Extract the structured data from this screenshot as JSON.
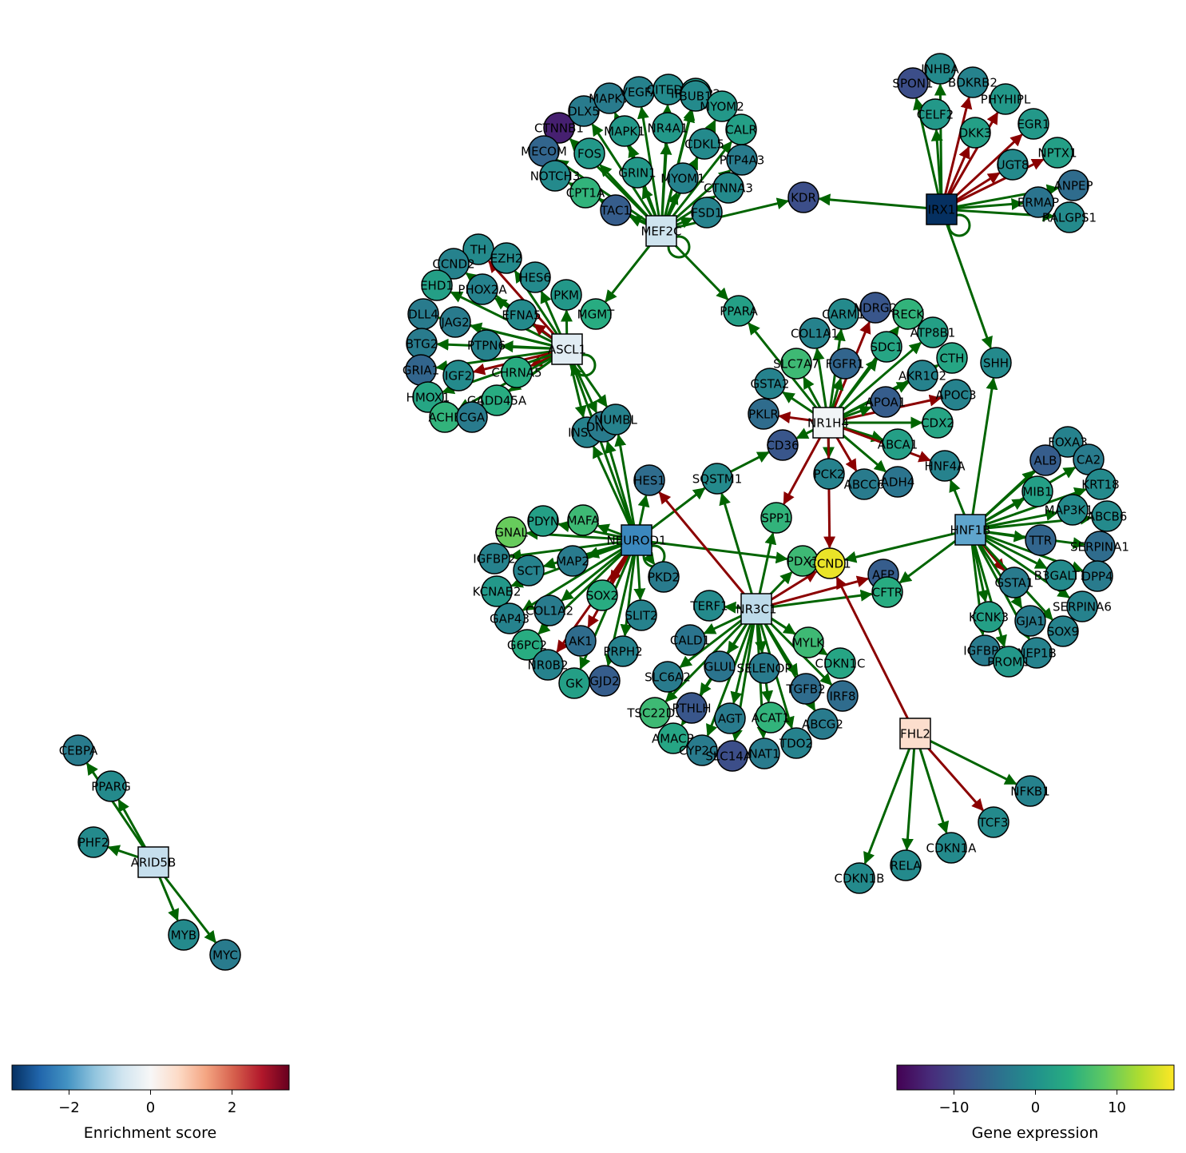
{
  "colors": {
    "activation": "#006400",
    "repression": "#8b0000"
  },
  "regulators": [
    {
      "id": "MEF2C",
      "score": -0.7
    },
    {
      "id": "IRX1",
      "score": -3.4
    },
    {
      "id": "ASCL1",
      "score": -0.4
    },
    {
      "id": "NR1H4",
      "score": -0.1
    },
    {
      "id": "NEUROD1",
      "score": -2.2
    },
    {
      "id": "HNF1B",
      "score": -1.8
    },
    {
      "id": "NR3C1",
      "score": -0.9
    },
    {
      "id": "FHL2",
      "score": 0.6
    },
    {
      "id": "ARID5B",
      "score": -0.8
    }
  ],
  "genes": [
    {
      "id": "CTNNB1",
      "expr": -14
    },
    {
      "id": "MECOM",
      "expr": -6
    },
    {
      "id": "NOTCH3",
      "expr": -1
    },
    {
      "id": "DLX5",
      "expr": -3
    },
    {
      "id": "MAPK7",
      "expr": -3
    },
    {
      "id": "VEGFA",
      "expr": -2
    },
    {
      "id": "CITED2",
      "expr": -1
    },
    {
      "id": "IRF2BP2",
      "expr": 1
    },
    {
      "id": "BUB1",
      "expr": -1
    },
    {
      "id": "MYOM2",
      "expr": 1
    },
    {
      "id": "FOS",
      "expr": 1
    },
    {
      "id": "MAPK1",
      "expr": 1
    },
    {
      "id": "NR4A1",
      "expr": 1
    },
    {
      "id": "CDKL5",
      "expr": -1
    },
    {
      "id": "CALR",
      "expr": 2
    },
    {
      "id": "PTP4A3",
      "expr": -3
    },
    {
      "id": "GRIN1",
      "expr": 1
    },
    {
      "id": "MYOM1",
      "expr": -2
    },
    {
      "id": "CTNNA3",
      "expr": -1
    },
    {
      "id": "CPT1A",
      "expr": 5
    },
    {
      "id": "TAC1",
      "expr": -7
    },
    {
      "id": "FSD1",
      "expr": -2
    },
    {
      "id": "KDR",
      "expr": -9
    },
    {
      "id": "INHBA",
      "expr": -1
    },
    {
      "id": "SPON1",
      "expr": -9
    },
    {
      "id": "BDKRB2",
      "expr": -2
    },
    {
      "id": "PHYHIPL",
      "expr": 1
    },
    {
      "id": "CELF2",
      "expr": 1
    },
    {
      "id": "DKK3",
      "expr": 2
    },
    {
      "id": "EGR1",
      "expr": 1
    },
    {
      "id": "UGT8",
      "expr": -1
    },
    {
      "id": "NPTX1",
      "expr": 2
    },
    {
      "id": "ANPEP",
      "expr": -5
    },
    {
      "id": "ERMAP",
      "expr": -4
    },
    {
      "id": "RALGPS1",
      "expr": -1
    },
    {
      "id": "TH",
      "expr": -1
    },
    {
      "id": "CCND2",
      "expr": -2
    },
    {
      "id": "EZH2",
      "expr": -1
    },
    {
      "id": "HES6",
      "expr": -1
    },
    {
      "id": "EHD1",
      "expr": 2
    },
    {
      "id": "PHOX2A",
      "expr": -2
    },
    {
      "id": "PKM",
      "expr": 1
    },
    {
      "id": "DLL4",
      "expr": -3
    },
    {
      "id": "EFNA5",
      "expr": -1
    },
    {
      "id": "JAG2",
      "expr": -3
    },
    {
      "id": "MGMT",
      "expr": 4
    },
    {
      "id": "BTG2",
      "expr": -3
    },
    {
      "id": "PTPN6",
      "expr": -2
    },
    {
      "id": "GRIA1",
      "expr": -6
    },
    {
      "id": "IGF2",
      "expr": -1
    },
    {
      "id": "CHRNA5",
      "expr": 4
    },
    {
      "id": "HMOX1",
      "expr": 3
    },
    {
      "id": "GADD45A",
      "expr": 4
    },
    {
      "id": "ACHE",
      "expr": 5
    },
    {
      "id": "CGA",
      "expr": -3
    },
    {
      "id": "INSM1",
      "expr": -2
    },
    {
      "id": "DNER",
      "expr": -3
    },
    {
      "id": "NUMBL",
      "expr": -2
    },
    {
      "id": "HES1",
      "expr": -5
    },
    {
      "id": "SQSTM1",
      "expr": -1
    },
    {
      "id": "PPARA",
      "expr": 2
    },
    {
      "id": "CARM1",
      "expr": -1
    },
    {
      "id": "NDRG2",
      "expr": -8
    },
    {
      "id": "RECK",
      "expr": 5
    },
    {
      "id": "COL1A1",
      "expr": -2
    },
    {
      "id": "ATP8B1",
      "expr": 2
    },
    {
      "id": "SDC1",
      "expr": 3
    },
    {
      "id": "CTH",
      "expr": 3
    },
    {
      "id": "SLC7A7",
      "expr": 6
    },
    {
      "id": "FGFR1",
      "expr": -6
    },
    {
      "id": "GSTA2",
      "expr": -2
    },
    {
      "id": "AKR1C2",
      "expr": -2
    },
    {
      "id": "APOC3",
      "expr": -2
    },
    {
      "id": "APOA1",
      "expr": -7
    },
    {
      "id": "PKLR",
      "expr": -5
    },
    {
      "id": "CDX2",
      "expr": 3
    },
    {
      "id": "CD36",
      "expr": -8
    },
    {
      "id": "ABCA1",
      "expr": 2
    },
    {
      "id": "HNF4A",
      "expr": -2
    },
    {
      "id": "PCK2",
      "expr": -2
    },
    {
      "id": "ABCC6",
      "expr": -3
    },
    {
      "id": "ADH4",
      "expr": -4
    },
    {
      "id": "SPP1",
      "expr": 5
    },
    {
      "id": "SHH",
      "expr": -1
    },
    {
      "id": "FOXA3",
      "expr": -2
    },
    {
      "id": "ALB",
      "expr": -7
    },
    {
      "id": "CA2",
      "expr": -3
    },
    {
      "id": "MIB1",
      "expr": 2
    },
    {
      "id": "KRT18",
      "expr": -1
    },
    {
      "id": "MAP3K14",
      "expr": -1
    },
    {
      "id": "ABCB6",
      "expr": -1
    },
    {
      "id": "TTR",
      "expr": -6
    },
    {
      "id": "SERPINA1",
      "expr": -5
    },
    {
      "id": "B3GALT1",
      "expr": -1
    },
    {
      "id": "DPP4",
      "expr": -3
    },
    {
      "id": "GSTA1",
      "expr": -3
    },
    {
      "id": "SERPINA6",
      "expr": -2
    },
    {
      "id": "KCNK3",
      "expr": 2
    },
    {
      "id": "GJA1",
      "expr": -3
    },
    {
      "id": "SOX9",
      "expr": -2
    },
    {
      "id": "IGFBP1",
      "expr": -3
    },
    {
      "id": "NEP1B",
      "expr": -2
    },
    {
      "id": "PROM1",
      "expr": 1
    },
    {
      "id": "GNAL",
      "expr": 9
    },
    {
      "id": "PDYN",
      "expr": 2
    },
    {
      "id": "MAFA",
      "expr": 6
    },
    {
      "id": "IGFBP2",
      "expr": -2
    },
    {
      "id": "SCT",
      "expr": -2
    },
    {
      "id": "MAP2",
      "expr": -3
    },
    {
      "id": "KCNAB2",
      "expr": 1
    },
    {
      "id": "COL1A2",
      "expr": -3
    },
    {
      "id": "SOX2",
      "expr": 4
    },
    {
      "id": "PKD2",
      "expr": -3
    },
    {
      "id": "GAP43",
      "expr": -2
    },
    {
      "id": "SLIT2",
      "expr": -2
    },
    {
      "id": "G6PC2",
      "expr": 4
    },
    {
      "id": "AK1",
      "expr": -5
    },
    {
      "id": "PRPH2",
      "expr": -2
    },
    {
      "id": "NR0B2",
      "expr": -2
    },
    {
      "id": "GK",
      "expr": 2
    },
    {
      "id": "GJD2",
      "expr": -7
    },
    {
      "id": "PDX1",
      "expr": 6
    },
    {
      "id": "CCND1",
      "expr": 16
    },
    {
      "id": "AFP",
      "expr": -7
    },
    {
      "id": "CFTR",
      "expr": 4
    },
    {
      "id": "TERF1",
      "expr": -1
    },
    {
      "id": "CALD1",
      "expr": -4
    },
    {
      "id": "MYLK",
      "expr": 6
    },
    {
      "id": "CDKN1C",
      "expr": 3
    },
    {
      "id": "SLC6A2",
      "expr": -3
    },
    {
      "id": "GLUL",
      "expr": -4
    },
    {
      "id": "SELENOP",
      "expr": -3
    },
    {
      "id": "TGFB2",
      "expr": -5
    },
    {
      "id": "IRF8",
      "expr": -5
    },
    {
      "id": "TSC22D3",
      "expr": 6
    },
    {
      "id": "PTHLH",
      "expr": -8
    },
    {
      "id": "AGT",
      "expr": -3
    },
    {
      "id": "ACAT1",
      "expr": 5
    },
    {
      "id": "ABCG2",
      "expr": -3
    },
    {
      "id": "AMACR",
      "expr": 3
    },
    {
      "id": "CYP2C9",
      "expr": -3
    },
    {
      "id": "SLC14A2",
      "expr": -9
    },
    {
      "id": "NAT1",
      "expr": -3
    },
    {
      "id": "TDO2",
      "expr": -2
    },
    {
      "id": "NFKB1",
      "expr": -2
    },
    {
      "id": "TCF3",
      "expr": -1
    },
    {
      "id": "CDKN1A",
      "expr": -1
    },
    {
      "id": "RELA",
      "expr": -1
    },
    {
      "id": "CDKN1B",
      "expr": -1
    },
    {
      "id": "CEBPA",
      "expr": -3
    },
    {
      "id": "PPARG",
      "expr": -1
    },
    {
      "id": "PHF2",
      "expr": -1
    },
    {
      "id": "MYB",
      "expr": -1
    },
    {
      "id": "MYC",
      "expr": -3
    }
  ],
  "edges": [
    [
      "MEF2C",
      "CTNNB1",
      "act"
    ],
    [
      "MEF2C",
      "MECOM",
      "act"
    ],
    [
      "MEF2C",
      "NOTCH3",
      "act"
    ],
    [
      "MEF2C",
      "DLX5",
      "act"
    ],
    [
      "MEF2C",
      "MAPK7",
      "act"
    ],
    [
      "MEF2C",
      "VEGFA",
      "act"
    ],
    [
      "MEF2C",
      "CITED2",
      "act"
    ],
    [
      "MEF2C",
      "IRF2BP2",
      "act"
    ],
    [
      "MEF2C",
      "BUB1",
      "act"
    ],
    [
      "MEF2C",
      "MYOM2",
      "act"
    ],
    [
      "MEF2C",
      "FOS",
      "act"
    ],
    [
      "MEF2C",
      "MAPK1",
      "act"
    ],
    [
      "MEF2C",
      "NR4A1",
      "act"
    ],
    [
      "MEF2C",
      "CDKL5",
      "act"
    ],
    [
      "MEF2C",
      "CALR",
      "act"
    ],
    [
      "MEF2C",
      "PTP4A3",
      "act"
    ],
    [
      "MEF2C",
      "GRIN1",
      "act"
    ],
    [
      "MEF2C",
      "MYOM1",
      "act"
    ],
    [
      "MEF2C",
      "CTNNA3",
      "act"
    ],
    [
      "MEF2C",
      "CPT1A",
      "act"
    ],
    [
      "MEF2C",
      "TAC1",
      "act"
    ],
    [
      "MEF2C",
      "FSD1",
      "act"
    ],
    [
      "MEF2C",
      "KDR",
      "act"
    ],
    [
      "MEF2C",
      "MGMT",
      "act"
    ],
    [
      "MEF2C",
      "PPARA",
      "act"
    ],
    [
      "IRX1",
      "KDR",
      "act"
    ],
    [
      "IRX1",
      "INHBA",
      "act"
    ],
    [
      "IRX1",
      "SPON1",
      "act"
    ],
    [
      "IRX1",
      "BDKRB2",
      "rep"
    ],
    [
      "IRX1",
      "PHYHIPL",
      "rep"
    ],
    [
      "IRX1",
      "CELF2",
      "act"
    ],
    [
      "IRX1",
      "DKK3",
      "rep"
    ],
    [
      "IRX1",
      "EGR1",
      "rep"
    ],
    [
      "IRX1",
      "UGT8",
      "rep"
    ],
    [
      "IRX1",
      "NPTX1",
      "rep"
    ],
    [
      "IRX1",
      "ANPEP",
      "act"
    ],
    [
      "IRX1",
      "ERMAP",
      "act"
    ],
    [
      "IRX1",
      "RALGPS1",
      "act"
    ],
    [
      "IRX1",
      "SHH",
      "act"
    ],
    [
      "ASCL1",
      "TH",
      "rep"
    ],
    [
      "ASCL1",
      "CCND2",
      "act"
    ],
    [
      "ASCL1",
      "EZH2",
      "act"
    ],
    [
      "ASCL1",
      "HES6",
      "act"
    ],
    [
      "ASCL1",
      "EHD1",
      "act"
    ],
    [
      "ASCL1",
      "PHOX2A",
      "act"
    ],
    [
      "ASCL1",
      "PKM",
      "act"
    ],
    [
      "ASCL1",
      "DLL4",
      "act"
    ],
    [
      "ASCL1",
      "EFNA5",
      "rep"
    ],
    [
      "ASCL1",
      "JAG2",
      "act"
    ],
    [
      "ASCL1",
      "BTG2",
      "act"
    ],
    [
      "ASCL1",
      "PTPN6",
      "act"
    ],
    [
      "ASCL1",
      "GRIA1",
      "act"
    ],
    [
      "ASCL1",
      "IGF2",
      "rep"
    ],
    [
      "ASCL1",
      "CHRNA5",
      "rep"
    ],
    [
      "ASCL1",
      "HMOX1",
      "act"
    ],
    [
      "ASCL1",
      "GADD45A",
      "act"
    ],
    [
      "ASCL1",
      "ACHE",
      "act"
    ],
    [
      "ASCL1",
      "CGA",
      "act"
    ],
    [
      "ASCL1",
      "INSM1",
      "act"
    ],
    [
      "ASCL1",
      "DNER",
      "act"
    ],
    [
      "ASCL1",
      "NUMBL",
      "act"
    ],
    [
      "NR1H4",
      "CARM1",
      "act"
    ],
    [
      "NR1H4",
      "NDRG2",
      "rep"
    ],
    [
      "NR1H4",
      "RECK",
      "act"
    ],
    [
      "NR1H4",
      "COL1A1",
      "act"
    ],
    [
      "NR1H4",
      "ATP8B1",
      "act"
    ],
    [
      "NR1H4",
      "SDC1",
      "act"
    ],
    [
      "NR1H4",
      "CTH",
      "act"
    ],
    [
      "NR1H4",
      "SLC7A7",
      "act"
    ],
    [
      "NR1H4",
      "FGFR1",
      "act"
    ],
    [
      "NR1H4",
      "GSTA2",
      "act"
    ],
    [
      "NR1H4",
      "AKR1C2",
      "act"
    ],
    [
      "NR1H4",
      "APOC3",
      "rep"
    ],
    [
      "NR1H4",
      "APOA1",
      "act"
    ],
    [
      "NR1H4",
      "PKLR",
      "rep"
    ],
    [
      "NR1H4",
      "CDX2",
      "act"
    ],
    [
      "NR1H4",
      "CD36",
      "act"
    ],
    [
      "NR1H4",
      "ABCA1",
      "act"
    ],
    [
      "NR1H4",
      "HNF4A",
      "rep"
    ],
    [
      "NR1H4",
      "PCK2",
      "act"
    ],
    [
      "NR1H4",
      "ABCC6",
      "rep"
    ],
    [
      "NR1H4",
      "ADH4",
      "act"
    ],
    [
      "NR1H4",
      "SPP1",
      "rep"
    ],
    [
      "NR1H4",
      "CCND1",
      "rep"
    ],
    [
      "NR1H4",
      "PPARA",
      "act"
    ],
    [
      "NEUROD1",
      "GNAL",
      "act"
    ],
    [
      "NEUROD1",
      "PDYN",
      "act"
    ],
    [
      "NEUROD1",
      "MAFA",
      "act"
    ],
    [
      "NEUROD1",
      "IGFBP2",
      "act"
    ],
    [
      "NEUROD1",
      "SCT",
      "act"
    ],
    [
      "NEUROD1",
      "MAP2",
      "act"
    ],
    [
      "NEUROD1",
      "KCNAB2",
      "act"
    ],
    [
      "NEUROD1",
      "COL1A2",
      "act"
    ],
    [
      "NEUROD1",
      "SOX2",
      "rep"
    ],
    [
      "NEUROD1",
      "PKD2",
      "act"
    ],
    [
      "NEUROD1",
      "GAP43",
      "act"
    ],
    [
      "NEUROD1",
      "SLIT2",
      "act"
    ],
    [
      "NEUROD1",
      "G6PC2",
      "act"
    ],
    [
      "NEUROD1",
      "AK1",
      "rep"
    ],
    [
      "NEUROD1",
      "PRPH2",
      "act"
    ],
    [
      "NEUROD1",
      "NR0B2",
      "rep"
    ],
    [
      "NEUROD1",
      "GK",
      "act"
    ],
    [
      "NEUROD1",
      "GJD2",
      "act"
    ],
    [
      "NEUROD1",
      "HES1",
      "act"
    ],
    [
      "NEUROD1",
      "SQSTM1",
      "act"
    ],
    [
      "NEUROD1",
      "INSM1",
      "act"
    ],
    [
      "NEUROD1",
      "DNER",
      "act"
    ],
    [
      "NEUROD1",
      "NUMBL",
      "act"
    ],
    [
      "NEUROD1",
      "PDX1",
      "act"
    ],
    [
      "NEUROD1",
      "ASCL1",
      "act"
    ],
    [
      "HNF1B",
      "FOXA3",
      "act"
    ],
    [
      "HNF1B",
      "ALB",
      "act"
    ],
    [
      "HNF1B",
      "CA2",
      "act"
    ],
    [
      "HNF1B",
      "MIB1",
      "act"
    ],
    [
      "HNF1B",
      "KRT18",
      "act"
    ],
    [
      "HNF1B",
      "MAP3K14",
      "act"
    ],
    [
      "HNF1B",
      "ABCB6",
      "act"
    ],
    [
      "HNF1B",
      "TTR",
      "act"
    ],
    [
      "HNF1B",
      "SERPINA1",
      "act"
    ],
    [
      "HNF1B",
      "B3GALT1",
      "act"
    ],
    [
      "HNF1B",
      "DPP4",
      "act"
    ],
    [
      "HNF1B",
      "GSTA1",
      "rep"
    ],
    [
      "HNF1B",
      "SERPINA6",
      "act"
    ],
    [
      "HNF1B",
      "KCNK3",
      "act"
    ],
    [
      "HNF1B",
      "GJA1",
      "act"
    ],
    [
      "HNF1B",
      "SOX9",
      "act"
    ],
    [
      "HNF1B",
      "IGFBP1",
      "act"
    ],
    [
      "HNF1B",
      "NEP1B",
      "act"
    ],
    [
      "HNF1B",
      "PROM1",
      "act"
    ],
    [
      "HNF1B",
      "HNF4A",
      "act"
    ],
    [
      "HNF1B",
      "SHH",
      "act"
    ],
    [
      "HNF1B",
      "CCND1",
      "act"
    ],
    [
      "HNF1B",
      "CFTR",
      "act"
    ],
    [
      "NR3C1",
      "PDX1",
      "act"
    ],
    [
      "NR3C1",
      "CCND1",
      "rep"
    ],
    [
      "NR3C1",
      "AFP",
      "rep"
    ],
    [
      "NR3C1",
      "CFTR",
      "act"
    ],
    [
      "NR3C1",
      "TERF1",
      "act"
    ],
    [
      "NR3C1",
      "CALD1",
      "act"
    ],
    [
      "NR3C1",
      "MYLK",
      "act"
    ],
    [
      "NR3C1",
      "CDKN1C",
      "act"
    ],
    [
      "NR3C1",
      "SLC6A2",
      "act"
    ],
    [
      "NR3C1",
      "GLUL",
      "act"
    ],
    [
      "NR3C1",
      "SELENOP",
      "act"
    ],
    [
      "NR3C1",
      "TGFB2",
      "act"
    ],
    [
      "NR3C1",
      "IRF8",
      "act"
    ],
    [
      "NR3C1",
      "TSC22D3",
      "act"
    ],
    [
      "NR3C1",
      "PTHLH",
      "act"
    ],
    [
      "NR3C1",
      "AGT",
      "act"
    ],
    [
      "NR3C1",
      "ACAT1",
      "act"
    ],
    [
      "NR3C1",
      "ABCG2",
      "act"
    ],
    [
      "NR3C1",
      "AMACR",
      "act"
    ],
    [
      "NR3C1",
      "CYP2C9",
      "act"
    ],
    [
      "NR3C1",
      "SLC14A2",
      "act"
    ],
    [
      "NR3C1",
      "NAT1",
      "act"
    ],
    [
      "NR3C1",
      "TDO2",
      "act"
    ],
    [
      "NR3C1",
      "SPP1",
      "act"
    ],
    [
      "NR3C1",
      "HES1",
      "rep"
    ],
    [
      "NR3C1",
      "SQSTM1",
      "act"
    ],
    [
      "SQSTM1",
      "CD36",
      "act"
    ],
    [
      "FHL2",
      "CCND1",
      "rep"
    ],
    [
      "FHL2",
      "NFKB1",
      "act"
    ],
    [
      "FHL2",
      "TCF3",
      "rep"
    ],
    [
      "FHL2",
      "CDKN1A",
      "act"
    ],
    [
      "FHL2",
      "RELA",
      "act"
    ],
    [
      "FHL2",
      "CDKN1B",
      "act"
    ],
    [
      "ARID5B",
      "CEBPA",
      "act"
    ],
    [
      "ARID5B",
      "PPARG",
      "act"
    ],
    [
      "ARID5B",
      "PHF2",
      "act"
    ],
    [
      "ARID5B",
      "MYB",
      "act"
    ],
    [
      "ARID5B",
      "MYC",
      "act"
    ]
  ],
  "self_loops": [
    "MEF2C",
    "IRX1",
    "ASCL1",
    "NEUROD1"
  ],
  "colorbar_enrichment": {
    "title": "Enrichment score",
    "min": -3.4,
    "max": 3.4,
    "ticks": [
      -2,
      0,
      2
    ],
    "tick_labels": [
      "−2",
      "0",
      "2"
    ]
  },
  "colorbar_expression": {
    "title": "Gene expression",
    "min": -17,
    "max": 17,
    "ticks": [
      -10,
      0,
      10
    ],
    "tick_labels": [
      "−10",
      "0",
      "10"
    ]
  }
}
